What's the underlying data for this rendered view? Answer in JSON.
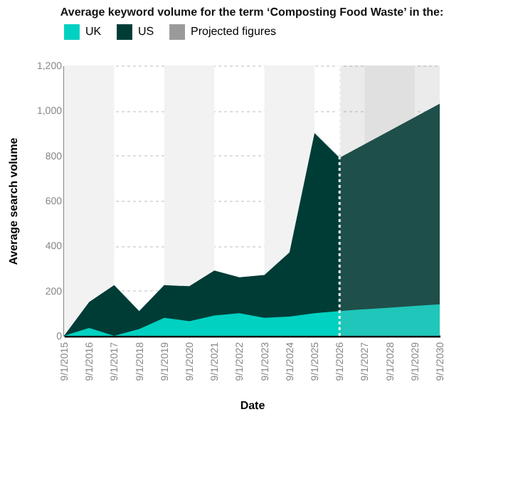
{
  "chart_data": {
    "type": "area",
    "title": "Average keyword volume for the term ‘Composting Food Waste’ in the:",
    "xlabel": "Date",
    "ylabel": "Average search volume",
    "x": [
      "2015-09-01",
      "2016-09-01",
      "2017-09-01",
      "2018-09-01",
      "2019-09-01",
      "2020-09-01",
      "2021-09-01",
      "2022-09-01",
      "2023-09-01",
      "2024-09-01",
      "2025-09-01",
      "2026-09-01",
      "2027-09-01",
      "2028-09-01",
      "2029-09-01",
      "2030-09-01"
    ],
    "series": [
      {
        "name": "UK",
        "color": "#00d1c1",
        "values": [
          0,
          35,
          0,
          30,
          80,
          65,
          90,
          100,
          80,
          85,
          100,
          110,
          118,
          125,
          133,
          140
        ]
      },
      {
        "name": "US",
        "color": "#003c36",
        "values": [
          0,
          150,
          225,
          110,
          225,
          220,
          290,
          260,
          270,
          370,
          900,
          790,
          850,
          910,
          970,
          1030
        ]
      }
    ],
    "xlim": [
      "2015-09-01",
      "2030-09-01"
    ],
    "xticks": [
      {
        "value": "2015-09-01",
        "label": "9/1/2015"
      },
      {
        "value": "2016-09-01",
        "label": "9/1/2016"
      },
      {
        "value": "2017-09-01",
        "label": "9/1/2017"
      },
      {
        "value": "2018-09-01",
        "label": "9/1/2018"
      },
      {
        "value": "2019-09-01",
        "label": "9/1/2019"
      },
      {
        "value": "2020-09-01",
        "label": "9/1/2020"
      },
      {
        "value": "2021-09-01",
        "label": "9/1/2021"
      },
      {
        "value": "2022-09-01",
        "label": "9/1/2022"
      },
      {
        "value": "2023-09-01",
        "label": "9/1/2023"
      },
      {
        "value": "2024-09-01",
        "label": "9/1/2024"
      },
      {
        "value": "2025-09-01",
        "label": "9/1/2025"
      },
      {
        "value": "2026-09-01",
        "label": "9/1/2026"
      },
      {
        "value": "2027-09-01",
        "label": "9/1/2027"
      },
      {
        "value": "2028-09-01",
        "label": "9/1/2028"
      },
      {
        "value": "2029-09-01",
        "label": "9/1/2029"
      },
      {
        "value": "2030-09-01",
        "label": "9/1/2030"
      }
    ],
    "ylim": [
      0,
      1200
    ],
    "yticks": [
      0,
      {
        "value": 200,
        "label": "200"
      },
      {
        "value": 400,
        "label": "400"
      },
      {
        "value": 600,
        "label": "600"
      },
      {
        "value": 800,
        "label": "800"
      },
      {
        "value": 1000,
        "label": "1,000"
      },
      {
        "value": 1200,
        "label": "1,200"
      }
    ],
    "grid": "y",
    "legend": "top",
    "bands": [
      {
        "axis": "x",
        "from": "2015-09-01",
        "to": "2017-09-01",
        "color": "#f2f2f2"
      },
      {
        "axis": "x",
        "from": "2019-09-01",
        "to": "2021-09-01",
        "color": "#f2f2f2"
      },
      {
        "axis": "x",
        "from": "2023-09-01",
        "to": "2025-09-01",
        "color": "#f2f2f2"
      },
      {
        "axis": "x",
        "from": "2027-09-01",
        "to": "2029-09-01",
        "color": "#f2f2f2"
      },
      {
        "axis": "x",
        "from": "2026-09-01",
        "to": "2030-09-01",
        "label": "Projected figures",
        "color": "#9a9a9a"
      }
    ],
    "ref_lines": [
      {
        "axis": "x",
        "value": "2026-09-01",
        "color": "#ffffff",
        "line_style": "dotted"
      }
    ]
  }
}
